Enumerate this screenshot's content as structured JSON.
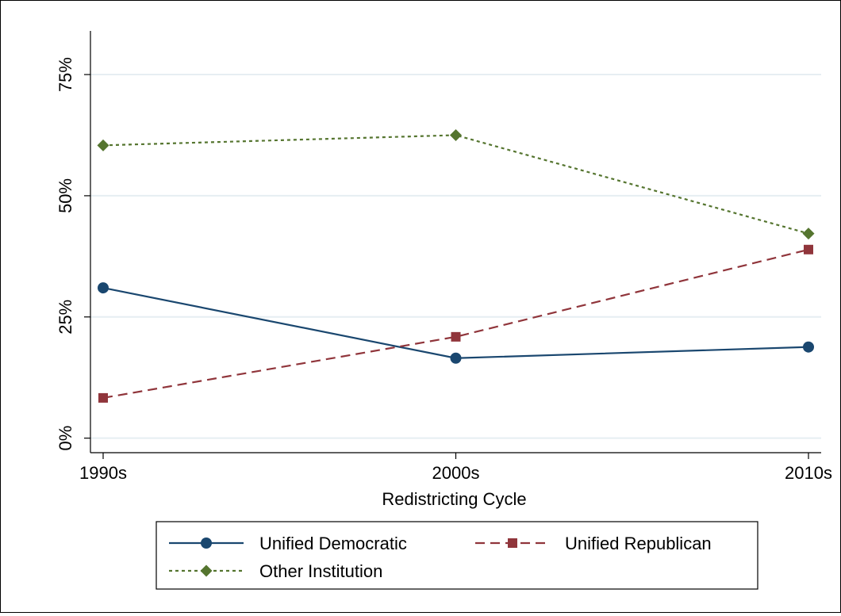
{
  "chart_data": {
    "type": "line",
    "title": "",
    "xlabel": "Redistricting Cycle",
    "ylabel": "",
    "categories": [
      "1990s",
      "2000s",
      "2010s"
    ],
    "ylim": [
      -3,
      84
    ],
    "y_ticks": [
      0,
      25,
      50,
      75
    ],
    "y_tick_labels": [
      "0%",
      "25%",
      "50%",
      "75%"
    ],
    "grid": true,
    "legend_position": "bottom",
    "series": [
      {
        "name": "Unified Democratic",
        "values": [
          31,
          16.5,
          18.8
        ],
        "color": "#1a476f",
        "marker": "circle",
        "dash": "solid"
      },
      {
        "name": "Unified Republican",
        "values": [
          8.3,
          20.9,
          38.9
        ],
        "color": "#90353b",
        "marker": "square",
        "dash": "dashed"
      },
      {
        "name": "Other Institution",
        "values": [
          60.4,
          62.5,
          42.2
        ],
        "color": "#55752f",
        "marker": "diamond",
        "dash": "dotted"
      }
    ]
  },
  "colors": {
    "grid": "#e6eef2",
    "axis": "#000000",
    "background": "#ffffff"
  }
}
